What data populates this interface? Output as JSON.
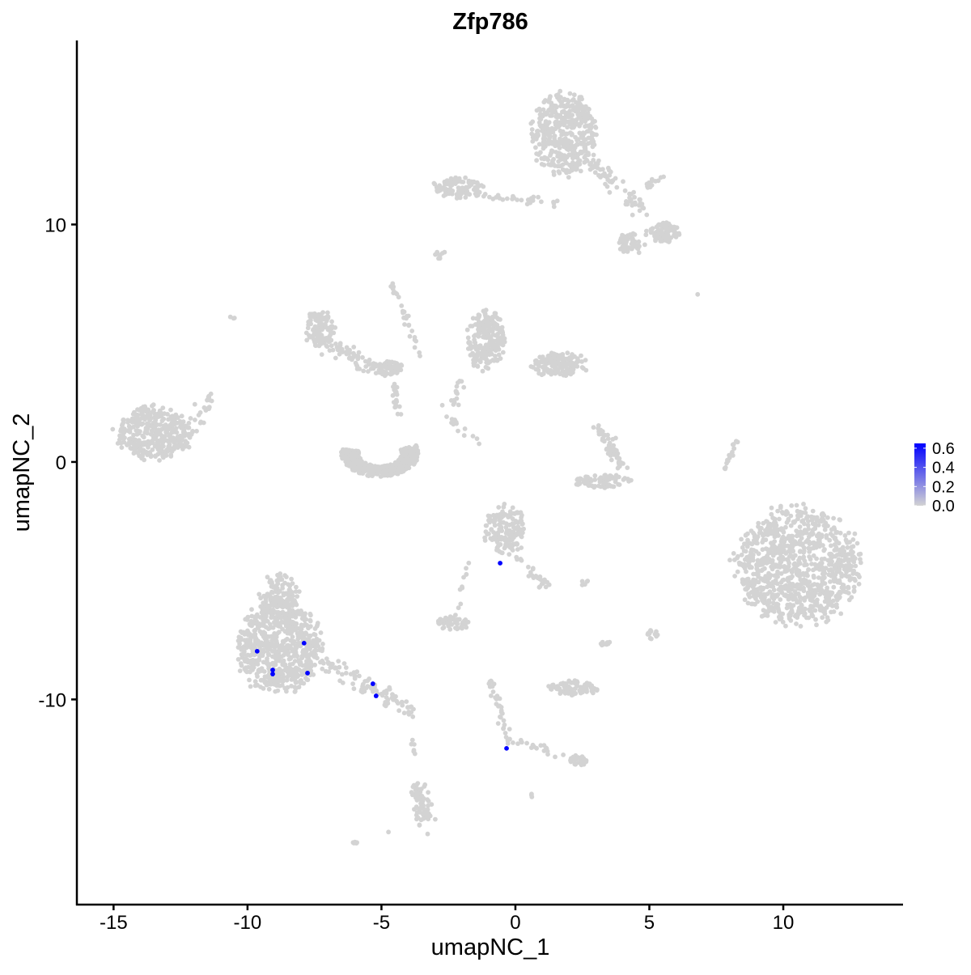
{
  "chart_data": {
    "type": "scatter",
    "title": "Zfp786",
    "xlabel": "umapNC_1",
    "ylabel": "umapNC_2",
    "xlim": [
      -16.37,
      14.47
    ],
    "ylim": [
      -18.64,
      17.75
    ],
    "xticks": [
      -15,
      -10,
      -5,
      0,
      5,
      10
    ],
    "yticks": [
      -10,
      0,
      10
    ],
    "grid": false,
    "legend": {
      "position": "right",
      "type": "colorbar",
      "ticks": [
        "0.0",
        "0.2",
        "0.4",
        "0.6"
      ],
      "range": [
        0,
        0.65
      ],
      "low_color": "#d3d3d3",
      "high_color": "#0000ff"
    },
    "background_cells": {
      "value": 0,
      "color": "#d3d3d3",
      "groups": [
        {
          "kind": "ellipse",
          "c": [
            -13.5,
            1.23
          ],
          "r": [
            1.36,
            1.09
          ],
          "n": 380
        },
        {
          "kind": "segment",
          "from": [
            -12.15,
            1.4
          ],
          "to": [
            -11.33,
            2.83
          ],
          "spread": 0.2,
          "n": 25
        },
        {
          "kind": "ellipse",
          "c": [
            1.81,
            13.83
          ],
          "r": [
            1.15,
            1.7
          ],
          "n": 420
        },
        {
          "kind": "ellipse",
          "c": [
            -2.18,
            11.55
          ],
          "r": [
            0.9,
            0.4
          ],
          "n": 90
        },
        {
          "kind": "segment",
          "from": [
            -2.93,
            11.45
          ],
          "to": [
            1.6,
            10.94
          ],
          "spread": 0.15,
          "n": 40
        },
        {
          "kind": "segment",
          "from": [
            2.5,
            12.98
          ],
          "to": [
            4.62,
            10.6
          ],
          "spread": 0.35,
          "n": 70
        },
        {
          "kind": "ellipse",
          "c": [
            5.53,
            9.64
          ],
          "r": [
            0.6,
            0.4
          ],
          "n": 90
        },
        {
          "kind": "ellipse",
          "c": [
            4.32,
            9.23
          ],
          "r": [
            0.5,
            0.45
          ],
          "n": 50
        },
        {
          "kind": "segment",
          "from": [
            4.92,
            11.6
          ],
          "to": [
            5.68,
            12.13
          ],
          "spread": 0.15,
          "n": 15
        },
        {
          "kind": "ellipse",
          "c": [
            -2.78,
            8.72
          ],
          "r": [
            0.2,
            0.2
          ],
          "n": 8
        },
        {
          "kind": "ellipse",
          "c": [
            -7.31,
            5.66
          ],
          "r": [
            0.55,
            0.75
          ],
          "n": 110
        },
        {
          "kind": "segment",
          "from": [
            -7.16,
            5.14
          ],
          "to": [
            -5.05,
            3.78
          ],
          "spread": 0.35,
          "n": 80
        },
        {
          "kind": "ellipse",
          "c": [
            -4.74,
            3.95
          ],
          "r": [
            0.5,
            0.3
          ],
          "n": 60
        },
        {
          "kind": "segment",
          "from": [
            -4.59,
            7.53
          ],
          "to": [
            -3.53,
            4.46
          ],
          "spread": 0.12,
          "n": 30
        },
        {
          "kind": "segment",
          "from": [
            -4.44,
            3.44
          ],
          "to": [
            -4.44,
            1.74
          ],
          "spread": 0.2,
          "n": 20
        },
        {
          "kind": "arc",
          "c": [
            -5.05,
            0.37
          ],
          "r": [
            1.45,
            1.0
          ],
          "angles": [
            170,
            380
          ],
          "thickness": 0.3,
          "n": 420
        },
        {
          "kind": "ellipse",
          "c": [
            -1.12,
            5.14
          ],
          "r": [
            0.7,
            1.2
          ],
          "n": 230
        },
        {
          "kind": "ellipse",
          "c": [
            1.6,
            4.12
          ],
          "r": [
            1.05,
            0.5
          ],
          "n": 160
        },
        {
          "kind": "segment",
          "from": [
            -2.02,
            3.44
          ],
          "to": [
            -2.33,
            2.42
          ],
          "spread": 0.15,
          "n": 15
        },
        {
          "kind": "segment",
          "from": [
            -3.0,
            2.3
          ],
          "to": [
            -1.1,
            0.6
          ],
          "spread": 0.2,
          "n": 14
        },
        {
          "kind": "ellipse",
          "c": [
            3.26,
            -0.82
          ],
          "r": [
            1.05,
            0.27
          ],
          "n": 80
        },
        {
          "kind": "segment",
          "from": [
            3.11,
            1.4
          ],
          "to": [
            4.02,
            -0.31
          ],
          "spread": 0.25,
          "n": 60
        },
        {
          "kind": "segment",
          "from": [
            7.79,
            -0.31
          ],
          "to": [
            8.25,
            0.89
          ],
          "spread": 0.08,
          "n": 20
        },
        {
          "kind": "ellipse",
          "c": [
            10.51,
            -4.4
          ],
          "r": [
            2.27,
            2.38
          ],
          "n": 950
        },
        {
          "kind": "ellipse",
          "c": [
            -0.36,
            -2.86
          ],
          "r": [
            0.75,
            1.0
          ],
          "n": 160
        },
        {
          "kind": "segment",
          "from": [
            0.09,
            -4.05
          ],
          "to": [
            1.3,
            -5.42
          ],
          "spread": 0.2,
          "n": 25
        },
        {
          "kind": "ellipse",
          "c": [
            -8.82,
            -7.8
          ],
          "r": [
            1.5,
            1.87
          ],
          "n": 650
        },
        {
          "kind": "ellipse",
          "c": [
            -8.82,
            -5.76
          ],
          "r": [
            0.75,
            1.0
          ],
          "n": 160
        },
        {
          "kind": "segment",
          "from": [
            -7.16,
            -8.48
          ],
          "to": [
            -3.84,
            -10.53
          ],
          "spread": 0.35,
          "n": 90
        },
        {
          "kind": "ellipse",
          "c": [
            -2.33,
            -6.78
          ],
          "r": [
            0.6,
            0.3
          ],
          "n": 50
        },
        {
          "kind": "segment",
          "from": [
            -1.8,
            -4.3
          ],
          "to": [
            -2.1,
            -6.2
          ],
          "spread": 0.12,
          "n": 10
        },
        {
          "kind": "ellipse",
          "c": [
            2.21,
            -9.51
          ],
          "r": [
            0.95,
            0.3
          ],
          "n": 85
        },
        {
          "kind": "segment",
          "from": [
            -0.97,
            -9.17
          ],
          "to": [
            -0.21,
            -11.72
          ],
          "spread": 0.15,
          "n": 35
        },
        {
          "kind": "segment",
          "from": [
            -0.21,
            -11.72
          ],
          "to": [
            2.5,
            -12.57
          ],
          "spread": 0.2,
          "n": 25
        },
        {
          "kind": "ellipse",
          "c": [
            2.36,
            -12.57
          ],
          "r": [
            0.3,
            0.25
          ],
          "n": 25
        },
        {
          "kind": "segment",
          "from": [
            -3.6,
            -13.6
          ],
          "to": [
            -3.38,
            -15.3
          ],
          "spread": 0.3,
          "n": 70
        },
        {
          "kind": "segment",
          "from": [
            -3.84,
            -11.7
          ],
          "to": [
            -3.78,
            -12.4
          ],
          "spread": 0.1,
          "n": 6
        },
        {
          "kind": "ellipse",
          "c": [
            -6.0,
            -16.08
          ],
          "r": [
            0.2,
            0.1
          ],
          "n": 6
        },
        {
          "kind": "ellipse",
          "c": [
            3.35,
            -7.63
          ],
          "r": [
            0.2,
            0.2
          ],
          "n": 10
        },
        {
          "kind": "ellipse",
          "c": [
            5.08,
            -7.29
          ],
          "r": [
            0.25,
            0.2
          ],
          "n": 15
        },
        {
          "kind": "ellipse",
          "c": [
            2.6,
            -5.1
          ],
          "r": [
            0.15,
            0.1
          ],
          "n": 5
        },
        {
          "kind": "ellipse",
          "c": [
            0.63,
            -14.0
          ],
          "r": [
            0.1,
            0.1
          ],
          "n": 3
        },
        {
          "kind": "ellipse",
          "c": [
            -10.57,
            6.06
          ],
          "r": [
            0.1,
            0.1
          ],
          "n": 3
        },
        {
          "kind": "ellipse",
          "c": [
            6.8,
            7.09
          ],
          "r": [
            0.05,
            0.05
          ],
          "n": 1
        },
        {
          "kind": "ellipse",
          "c": [
            -4.74,
            -15.54
          ],
          "r": [
            0.05,
            0.05
          ],
          "n": 1
        }
      ]
    },
    "expressing_cells": [
      {
        "x": -9.64,
        "y": -7.97,
        "value": 0.65
      },
      {
        "x": -7.89,
        "y": -7.63,
        "value": 0.65
      },
      {
        "x": -9.06,
        "y": -8.76,
        "value": 0.65
      },
      {
        "x": -9.06,
        "y": -8.93,
        "value": 0.65
      },
      {
        "x": -7.76,
        "y": -8.89,
        "value": 0.65
      },
      {
        "x": -5.32,
        "y": -9.34,
        "value": 0.65
      },
      {
        "x": -5.2,
        "y": -9.85,
        "value": 0.65
      },
      {
        "x": -0.57,
        "y": -4.26,
        "value": 0.65
      },
      {
        "x": -0.33,
        "y": -12.06,
        "value": 0.65
      }
    ]
  }
}
